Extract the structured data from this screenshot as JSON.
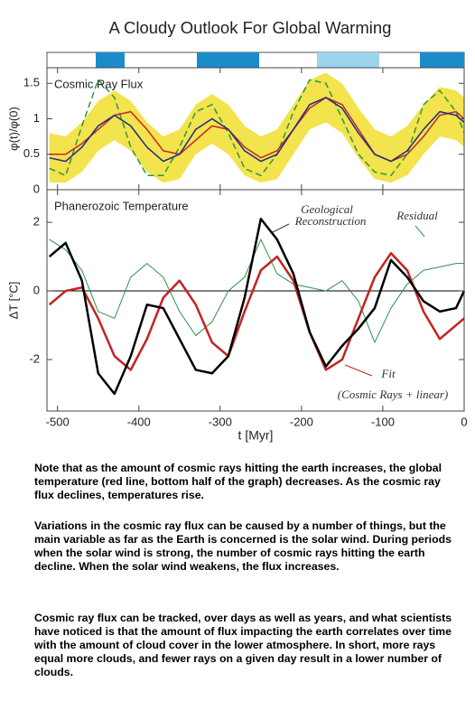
{
  "title": "A Cloudy Outlook For Global Warming",
  "chart_data": [
    {
      "type": "line",
      "title": "Cosmic Ray Flux",
      "ylabel": "φ(t)/φ(0)",
      "xlim": [
        -513,
        0
      ],
      "ylim": [
        0,
        1.72
      ],
      "yticks": [
        0,
        0.5,
        1,
        1.5
      ],
      "x": [
        -510,
        -490,
        -470,
        -450,
        -430,
        -410,
        -390,
        -370,
        -350,
        -330,
        -310,
        -290,
        -270,
        -250,
        -230,
        -210,
        -190,
        -170,
        -150,
        -130,
        -110,
        -90,
        -70,
        -50,
        -30,
        -10,
        0
      ],
      "band": {
        "color": "#f3e34c",
        "lower": [
          0.1,
          0.1,
          0.25,
          0.55,
          0.7,
          0.55,
          0.25,
          0.1,
          0.15,
          0.5,
          0.65,
          0.5,
          0.2,
          0.1,
          0.15,
          0.5,
          0.85,
          0.95,
          0.8,
          0.45,
          0.15,
          0.1,
          0.2,
          0.5,
          0.75,
          0.7,
          0.6
        ],
        "upper": [
          0.8,
          0.75,
          0.95,
          1.25,
          1.4,
          1.25,
          0.95,
          0.75,
          0.85,
          1.2,
          1.35,
          1.2,
          0.9,
          0.75,
          0.85,
          1.2,
          1.55,
          1.65,
          1.5,
          1.15,
          0.85,
          0.75,
          0.9,
          1.2,
          1.45,
          1.4,
          1.3
        ]
      },
      "series": [
        {
          "color": "#2a9a3a",
          "dashed": true,
          "values": [
            0.3,
            0.2,
            0.9,
            1.55,
            1.3,
            0.6,
            0.2,
            0.2,
            0.6,
            1.1,
            1.2,
            0.8,
            0.3,
            0.2,
            0.5,
            1.1,
            1.55,
            1.5,
            1.0,
            0.5,
            0.25,
            0.2,
            0.5,
            1.2,
            1.4,
            1.1,
            0.8
          ]
        },
        {
          "color": "#c02828",
          "values": [
            0.5,
            0.5,
            0.65,
            0.85,
            1.05,
            1.1,
            0.85,
            0.55,
            0.5,
            0.7,
            0.9,
            0.85,
            0.6,
            0.45,
            0.55,
            0.85,
            1.15,
            1.3,
            1.2,
            0.85,
            0.5,
            0.4,
            0.5,
            0.75,
            1.05,
            1.1,
            1.0
          ]
        },
        {
          "color": "#1c2a8a",
          "values": [
            0.45,
            0.4,
            0.6,
            0.9,
            1.05,
            0.9,
            0.6,
            0.4,
            0.5,
            0.85,
            1.0,
            0.85,
            0.55,
            0.4,
            0.5,
            0.85,
            1.2,
            1.3,
            1.15,
            0.8,
            0.5,
            0.4,
            0.55,
            0.85,
            1.1,
            1.05,
            0.95
          ]
        }
      ]
    },
    {
      "type": "line",
      "title": "Phanerozoic Temperature",
      "ylabel": "ΔT [°C]",
      "xlabel": "t [Myr]",
      "xlim": [
        -513,
        0
      ],
      "ylim": [
        -3.5,
        2.95
      ],
      "yticks": [
        -2,
        0,
        2
      ],
      "xticks": [
        -500,
        -400,
        -300,
        -200,
        -100,
        0
      ],
      "reference_line": 0,
      "x": [
        -510,
        -490,
        -470,
        -450,
        -430,
        -410,
        -390,
        -370,
        -350,
        -330,
        -310,
        -290,
        -270,
        -250,
        -230,
        -210,
        -190,
        -170,
        -150,
        -130,
        -110,
        -90,
        -70,
        -50,
        -30,
        -10,
        0
      ],
      "annotations": [
        "Geological",
        "Reconstruction",
        "Residual",
        "Fit",
        "(Cosmic Rays + linear)"
      ],
      "series": [
        {
          "color": "#2e8f4e",
          "width": 1,
          "values": [
            1.5,
            1.2,
            0.6,
            -0.6,
            -0.8,
            0.4,
            0.8,
            0.4,
            -0.6,
            -1.3,
            -0.9,
            0.0,
            0.4,
            1.5,
            0.5,
            0.2,
            0.1,
            0.0,
            0.3,
            -0.3,
            -1.5,
            -0.5,
            0.2,
            0.6,
            0.7,
            0.8,
            0.8
          ]
        },
        {
          "color": "#c42222",
          "width": 2.5,
          "values": [
            -0.4,
            0.0,
            0.1,
            -0.8,
            -1.9,
            -2.3,
            -1.4,
            -0.2,
            0.3,
            -0.4,
            -1.5,
            -1.9,
            -0.6,
            0.6,
            1.0,
            0.3,
            -1.2,
            -2.3,
            -2.0,
            -0.8,
            0.4,
            1.1,
            0.6,
            -0.6,
            -1.4,
            -1.0,
            -0.8
          ]
        },
        {
          "color": "#000000",
          "width": 2.5,
          "values": [
            1.0,
            1.4,
            0.3,
            -2.4,
            -3.0,
            -1.9,
            -0.4,
            -0.5,
            -1.4,
            -2.3,
            -2.4,
            -1.9,
            -0.2,
            2.1,
            1.5,
            0.5,
            -1.2,
            -2.2,
            -1.6,
            -1.1,
            -0.5,
            0.9,
            0.4,
            -0.3,
            -0.6,
            -0.5,
            0.0
          ]
        }
      ]
    }
  ],
  "paragraphs": [
    "Note that as the amount of cosmic rays hitting the earth increases, the global temperature (red line, bottom half of the graph) decreases. As the cosmic ray flux declines, temperatures rise.",
    "Variations in the cosmic ray flux can be caused by a number of things, but the main variable as far as the Earth is concerned is the solar wind. During periods when the solar wind is strong, the number of cosmic rays hitting the earth decline. When the solar wind weakens, the flux increases.",
    "Cosmic ray flux can be tracked, over days as well as years, and what scientists have noticed is that the amount of flux impacting the earth correlates over time with the amount of cloud cover in the lower atmosphere. In short, more rays equal more clouds, and fewer rays on a given day result in a lower number of clouds."
  ]
}
